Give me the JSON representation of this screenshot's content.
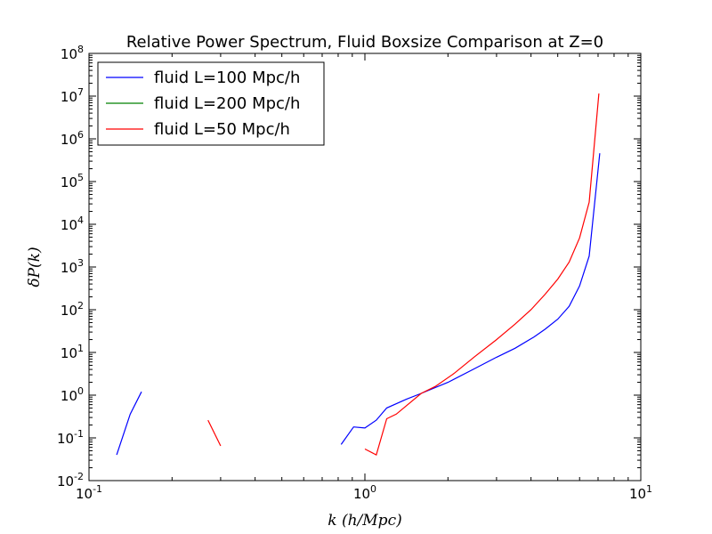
{
  "chart_data": {
    "type": "line",
    "title": "Relative Power Spectrum, Fluid Boxsize Comparison at Z=0",
    "xlabel": "k (h/Mpc)",
    "ylabel": "δP(k)",
    "xscale": "log",
    "yscale": "log",
    "xlim": [
      0.1,
      10
    ],
    "ylim": [
      0.01,
      100000000
    ],
    "x_ticks": [
      {
        "base": "10",
        "exp": "-1",
        "value": 0.1
      },
      {
        "base": "10",
        "exp": "0",
        "value": 1
      },
      {
        "base": "10",
        "exp": "1",
        "value": 10
      }
    ],
    "y_ticks": [
      {
        "base": "10",
        "exp": "-2",
        "value": 0.01
      },
      {
        "base": "10",
        "exp": "-1",
        "value": 0.1
      },
      {
        "base": "10",
        "exp": "0",
        "value": 1
      },
      {
        "base": "10",
        "exp": "1",
        "value": 10
      },
      {
        "base": "10",
        "exp": "2",
        "value": 100
      },
      {
        "base": "10",
        "exp": "3",
        "value": 1000
      },
      {
        "base": "10",
        "exp": "4",
        "value": 10000
      },
      {
        "base": "10",
        "exp": "5",
        "value": 100000
      },
      {
        "base": "10",
        "exp": "6",
        "value": 1000000
      },
      {
        "base": "10",
        "exp": "7",
        "value": 10000000
      },
      {
        "base": "10",
        "exp": "8",
        "value": 100000000
      }
    ],
    "legend_position": "top-left",
    "series": [
      {
        "name": "fluid L=100 Mpc/h",
        "color": "#0000ff",
        "segments": [
          [
            [
              0.126,
              0.04
            ],
            [
              0.141,
              0.36
            ],
            [
              0.155,
              1.2
            ]
          ],
          [
            [
              0.82,
              0.07
            ],
            [
              0.91,
              0.18
            ],
            [
              1.0,
              0.17
            ],
            [
              1.1,
              0.26
            ],
            [
              1.2,
              0.5
            ],
            [
              1.41,
              0.8
            ],
            [
              1.6,
              1.1
            ],
            [
              2.0,
              2.0
            ],
            [
              2.5,
              4.2
            ],
            [
              3.0,
              7.7
            ],
            [
              3.5,
              12.5
            ],
            [
              4.1,
              23
            ],
            [
              4.5,
              35
            ],
            [
              5.0,
              60
            ],
            [
              5.5,
              120
            ],
            [
              6.0,
              360
            ],
            [
              6.5,
              1800
            ],
            [
              7.1,
              460000
            ]
          ]
        ]
      },
      {
        "name": "fluid L=200 Mpc/h",
        "color": "#008000",
        "segments": []
      },
      {
        "name": "fluid L=50 Mpc/h",
        "color": "#ff0000",
        "segments": [
          [
            [
              0.27,
              0.26
            ],
            [
              0.3,
              0.065
            ]
          ],
          [
            [
              1.0,
              0.055
            ],
            [
              1.1,
              0.04
            ],
            [
              1.2,
              0.28
            ],
            [
              1.3,
              0.36
            ],
            [
              1.6,
              1.1
            ],
            [
              1.8,
              1.6
            ],
            [
              2.1,
              3.2
            ],
            [
              2.5,
              8
            ],
            [
              3.0,
              20
            ],
            [
              3.5,
              46
            ],
            [
              4.0,
              100
            ],
            [
              4.5,
              230
            ],
            [
              5.0,
              520
            ],
            [
              5.5,
              1300
            ],
            [
              6.0,
              4800
            ],
            [
              6.5,
              33000
            ],
            [
              7.05,
              11500000
            ]
          ]
        ]
      }
    ]
  }
}
